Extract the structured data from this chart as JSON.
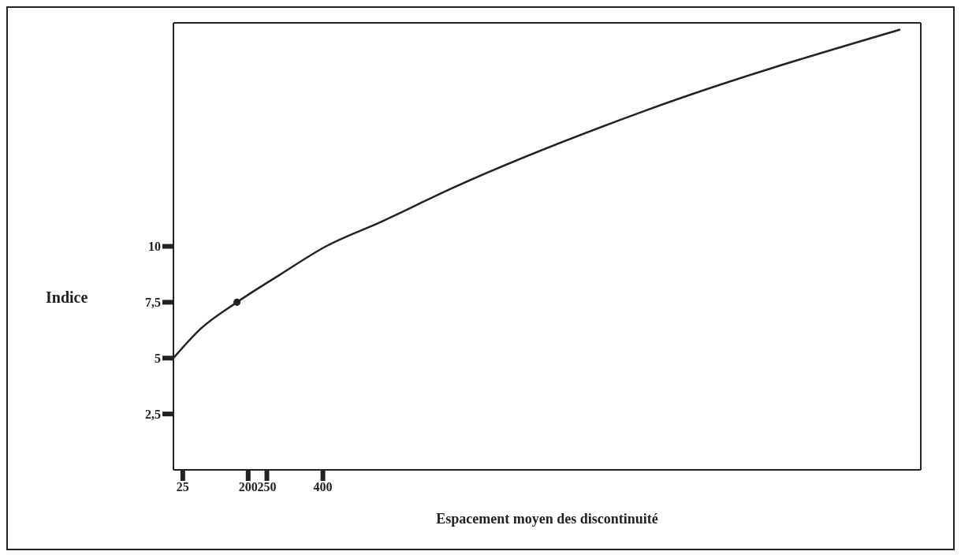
{
  "chart_data": {
    "type": "line",
    "xlabel": "Espacement moyen des discontinuité",
    "ylabel": "Indice",
    "xlim": [
      0,
      2000
    ],
    "ylim": [
      0,
      20
    ],
    "xticks": [
      25,
      200,
      250,
      400
    ],
    "yticks": [
      {
        "value": 2.5,
        "label": "2,5"
      },
      5,
      {
        "value": 7.5,
        "label": "7,5"
      },
      10
    ],
    "grid": false,
    "legend": false,
    "series": [
      {
        "color": "#222222",
        "marker": "none",
        "x": [
          0,
          72,
          170,
          282,
          408,
          556,
          745,
          1267,
          1945
        ],
        "values": [
          5,
          6.3,
          7.5,
          8.7,
          10,
          11.1,
          12.6,
          16.1,
          19.7
        ]
      },
      {
        "type": "scatter",
        "color": "#222222",
        "marker": "circle",
        "x": [
          170
        ],
        "values": [
          7.5
        ]
      }
    ]
  }
}
